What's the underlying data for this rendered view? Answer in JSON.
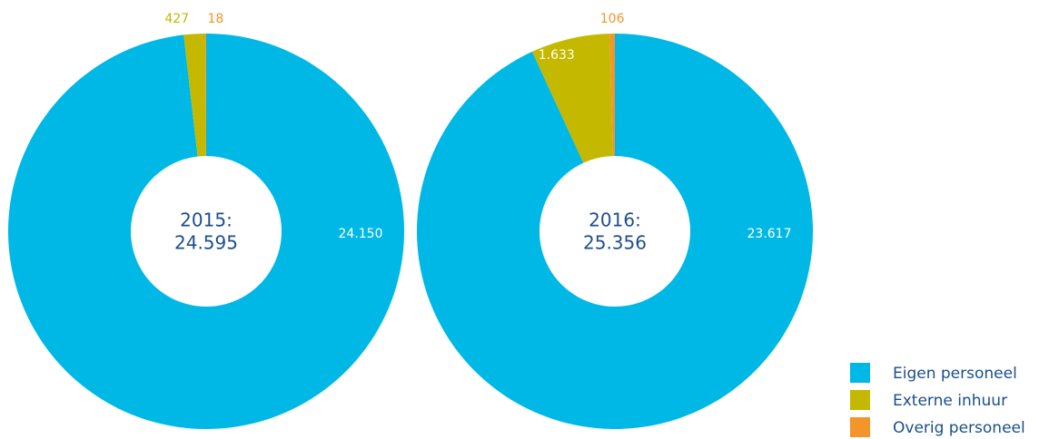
{
  "chart_data": [
    {
      "type": "pie",
      "hole": true,
      "center_text": [
        "2015:",
        "24.595"
      ],
      "values": [
        24150,
        427,
        18
      ],
      "value_labels": [
        "24.150",
        "427",
        "18"
      ]
    },
    {
      "type": "pie",
      "hole": true,
      "center_text": [
        "2016:",
        "25.356"
      ],
      "values": [
        23617,
        1633,
        106
      ],
      "value_labels": [
        "23.617",
        "1.633",
        "106"
      ]
    }
  ],
  "legend": {
    "names": [
      "Eigen personeel",
      "Externe inhuur",
      "Overig personeel"
    ],
    "colors": [
      "#00b8e6",
      "#c4b800",
      "#f3952a"
    ]
  }
}
